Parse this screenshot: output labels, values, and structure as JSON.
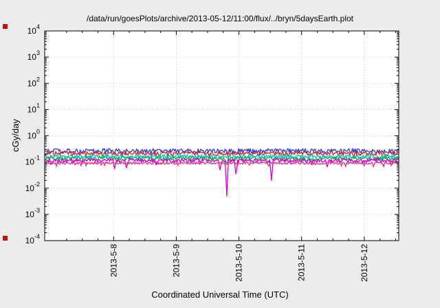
{
  "chart_data": {
    "type": "line",
    "title": "/data/run/goesPlots/archive/2013-05-12/11:00/flux/../bryn/5daysEarth.plot",
    "xlabel": "Coordinated Universal Time (UTC)",
    "ylabel": "cGy/day",
    "x_axis": {
      "unit": "date (2013, May, UTC days)",
      "range": [
        6.9,
        12.55
      ],
      "ticks": [
        {
          "v": 8,
          "label": "2013-5-8"
        },
        {
          "v": 9,
          "label": "2013-5-9"
        },
        {
          "v": 10,
          "label": "2013-5-10"
        },
        {
          "v": 11,
          "label": "2013-5-11"
        },
        {
          "v": 12,
          "label": "2013-5-12"
        }
      ],
      "minor_step_days": 0.25
    },
    "y_axis": {
      "scale": "log",
      "range": [
        0.0001,
        10000
      ],
      "tick_exponents": [
        4,
        3,
        2,
        1,
        0,
        -1,
        -2,
        -3,
        -4
      ],
      "unit": "cGy/day"
    },
    "grid": {
      "show": true,
      "color": "#c9c9c9"
    },
    "legend": "none",
    "series": [
      {
        "name": "blue",
        "color": "#3a3ad0",
        "base": 0.27,
        "noise": 0.2
      },
      {
        "name": "red",
        "color": "#d02525",
        "base": 0.215,
        "noise": 0.18
      },
      {
        "name": "cyan",
        "color": "#00c3c3",
        "base": 0.165,
        "noise": 0.16
      },
      {
        "name": "green",
        "color": "#00b050",
        "base": 0.14,
        "noise": 0.16,
        "spikes": [
          {
            "x": 9.81,
            "v": 0.08
          }
        ]
      },
      {
        "name": "magenta",
        "color": "#d400d4",
        "base": 0.115,
        "noise": 0.18,
        "spikes": [
          {
            "x": 8.02,
            "v": 0.055
          },
          {
            "x": 8.2,
            "v": 0.06
          },
          {
            "x": 9.7,
            "v": 0.05
          },
          {
            "x": 9.81,
            "v": 0.005
          },
          {
            "x": 9.95,
            "v": 0.035
          },
          {
            "x": 10.52,
            "v": 0.02
          },
          {
            "x": 11.4,
            "v": 0.065
          }
        ]
      },
      {
        "name": "pink",
        "color": "#ff2e8a",
        "base": 0.091,
        "noise": 0.1
      }
    ]
  },
  "decorations": {
    "corner_marker_color": "#c01010"
  }
}
